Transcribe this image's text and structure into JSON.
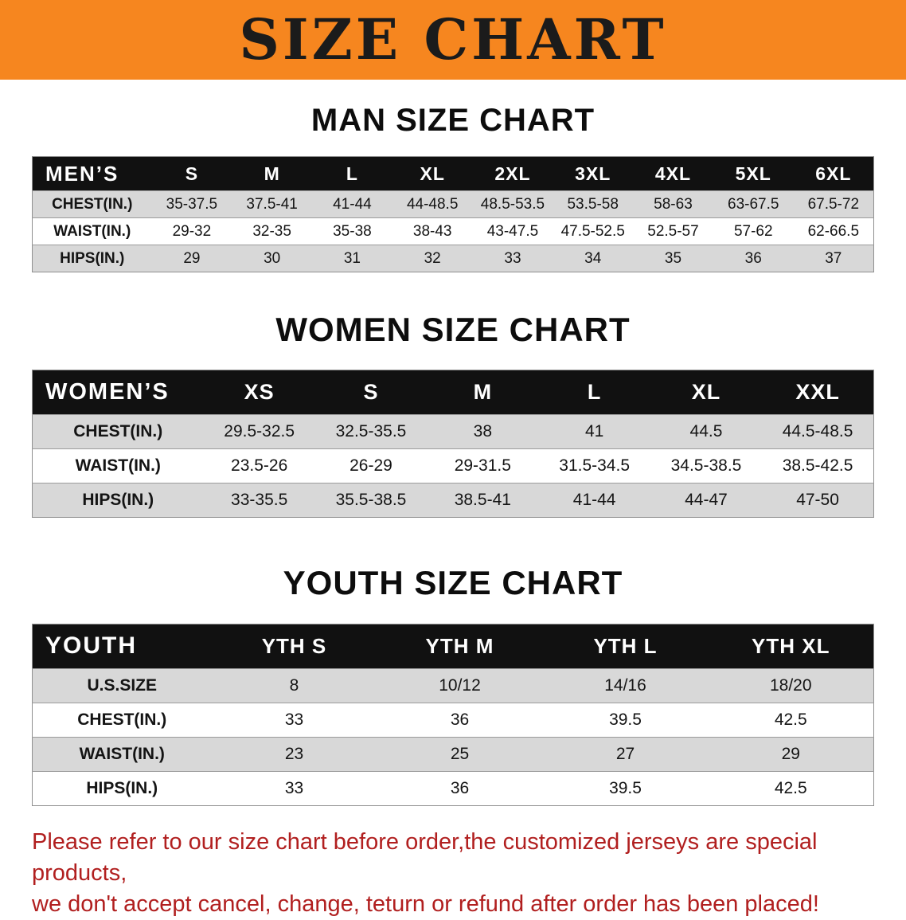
{
  "banner": {
    "title": "SIZE CHART"
  },
  "colors": {
    "banner_orange": "#f6861f",
    "table_header_black": "#111111",
    "row_stripe_gray": "#d8d8d8",
    "disclaimer_red": "#b11f1f",
    "text_black": "#141414"
  },
  "sections": [
    {
      "heading": "MAN SIZE CHART",
      "table": {
        "header": [
          "MEN’S",
          "S",
          "M",
          "L",
          "XL",
          "2XL",
          "3XL",
          "4XL",
          "5XL",
          "6XL"
        ],
        "rows": [
          [
            "CHEST(IN.)",
            "35-37.5",
            "37.5-41",
            "41-44",
            "44-48.5",
            "48.5-53.5",
            "53.5-58",
            "58-63",
            "63-67.5",
            "67.5-72"
          ],
          [
            "WAIST(IN.)",
            "29-32",
            "32-35",
            "35-38",
            "38-43",
            "43-47.5",
            "47.5-52.5",
            "52.5-57",
            "57-62",
            "62-66.5"
          ],
          [
            "HIPS(IN.)",
            "29",
            "30",
            "31",
            "32",
            "33",
            "34",
            "35",
            "36",
            "37"
          ]
        ]
      }
    },
    {
      "heading": "WOMEN SIZE CHART",
      "table": {
        "header": [
          "WOMEN’S",
          "XS",
          "S",
          "M",
          "L",
          "XL",
          "XXL"
        ],
        "rows": [
          [
            "CHEST(IN.)",
            "29.5-32.5",
            "32.5-35.5",
            "38",
            "41",
            "44.5",
            "44.5-48.5"
          ],
          [
            "WAIST(IN.)",
            "23.5-26",
            "26-29",
            "29-31.5",
            "31.5-34.5",
            "34.5-38.5",
            "38.5-42.5"
          ],
          [
            "HIPS(IN.)",
            "33-35.5",
            "35.5-38.5",
            "38.5-41",
            "41-44",
            "44-47",
            "47-50"
          ]
        ]
      }
    },
    {
      "heading": "YOUTH SIZE CHART",
      "table": {
        "header": [
          "YOUTH",
          "YTH S",
          "YTH M",
          "YTH L",
          "YTH XL"
        ],
        "rows": [
          [
            "U.S.SIZE",
            "8",
            "10/12",
            "14/16",
            "18/20"
          ],
          [
            "CHEST(IN.)",
            "33",
            "36",
            "39.5",
            "42.5"
          ],
          [
            "WAIST(IN.)",
            "23",
            "25",
            "27",
            "29"
          ],
          [
            "HIPS(IN.)",
            "33",
            "36",
            "39.5",
            "42.5"
          ]
        ]
      }
    }
  ],
  "disclaimer": {
    "line1": "Please refer to our size chart before order,the customized jerseys are special products,",
    "line2": "we don't accept cancel, change, teturn or refund after order has been placed!"
  }
}
